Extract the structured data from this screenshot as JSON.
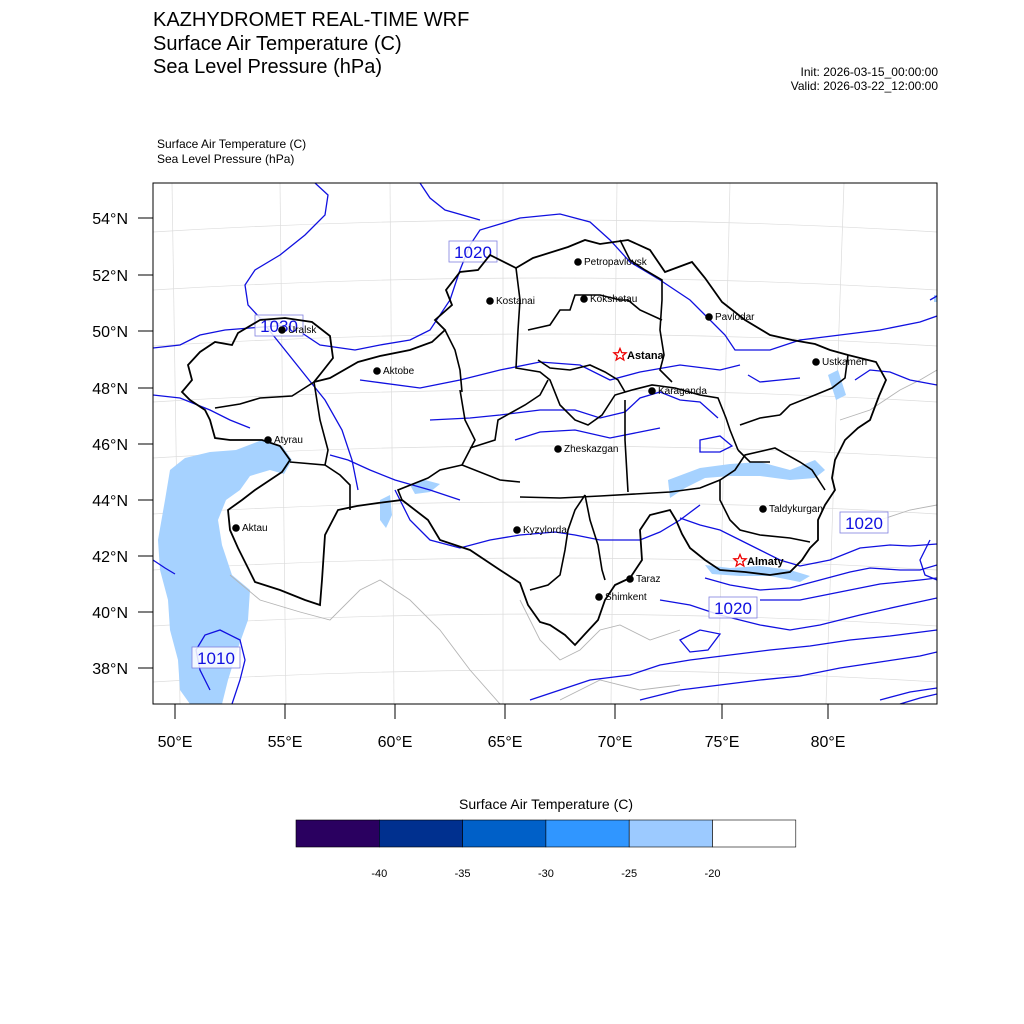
{
  "header": {
    "title1": "KAZHYDROMET REAL-TIME WRF",
    "title2": "Surface Air Temperature  (C)",
    "title3": "Sea Level Pressure  (hPa)",
    "init": "Init: 2026-03-15_00:00:00",
    "valid": "Valid: 2026-03-22_12:00:00",
    "sub1": "Surface Air Temperature   (C)",
    "sub2": "Sea Level Pressure   (hPa)"
  },
  "map": {
    "lat_labels": [
      "54°N",
      "52°N",
      "50°N",
      "48°N",
      "46°N",
      "44°N",
      "42°N",
      "40°N",
      "38°N"
    ],
    "lon_labels": [
      "50°E",
      "55°E",
      "60°E",
      "65°E",
      "70°E",
      "75°E",
      "80°E"
    ],
    "cities": [
      {
        "name": "Petropavlovsk",
        "capital": false
      },
      {
        "name": "Kostanai",
        "capital": false
      },
      {
        "name": "Kokshetau",
        "capital": false
      },
      {
        "name": "Pavlodar",
        "capital": false
      },
      {
        "name": "Uralsk",
        "capital": false
      },
      {
        "name": "Astana",
        "capital": true
      },
      {
        "name": "Ustkamen",
        "capital": false
      },
      {
        "name": "Aktobe",
        "capital": false
      },
      {
        "name": "Karaganda",
        "capital": false
      },
      {
        "name": "Atyrau",
        "capital": false
      },
      {
        "name": "Zheskazgan",
        "capital": false
      },
      {
        "name": "Taldykurgan",
        "capital": false
      },
      {
        "name": "Aktau",
        "capital": false
      },
      {
        "name": "Kyzylorda",
        "capital": false
      },
      {
        "name": "Almaty",
        "capital": true
      },
      {
        "name": "Taraz",
        "capital": false
      },
      {
        "name": "Shimkent",
        "capital": false
      }
    ],
    "isobar_labels": [
      "1020",
      "1030",
      "1020",
      "1020",
      "1010"
    ],
    "colors": {
      "isobar": "#1010e0",
      "cold_fill": "#a6d2ff",
      "border": "#000000"
    }
  },
  "colorbar": {
    "title": "Surface Air Temperature (C)",
    "colors": [
      "#2a0060",
      "#00308f",
      "#0060c8",
      "#3096ff",
      "#9ccaff",
      "#ffffff"
    ],
    "ticks": [
      "-40",
      "-35",
      "-30",
      "-25",
      "-20"
    ]
  }
}
